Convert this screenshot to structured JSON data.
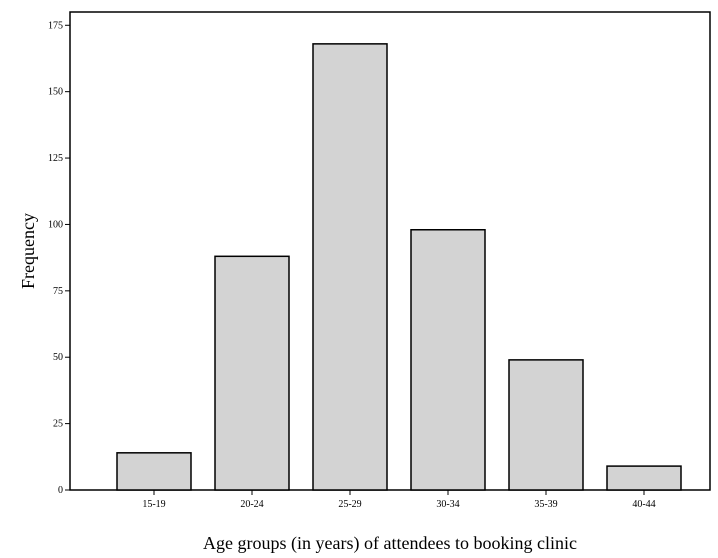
{
  "chart_data": {
    "type": "bar",
    "categories": [
      "15-19",
      "20-24",
      "25-29",
      "30-34",
      "35-39",
      "40-44"
    ],
    "values": [
      14,
      88,
      168,
      98,
      49,
      9
    ],
    "xlabel": "Age groups (in years) of attendees to booking clinic",
    "ylabel": "Frequency",
    "ylim": [
      0,
      180
    ],
    "yticks": [
      "0",
      "25",
      "50",
      "75",
      "100",
      "125",
      "150",
      "175"
    ],
    "grid": false,
    "bar_color": "#d3d3d3",
    "bar_edge_color": "#000000"
  }
}
